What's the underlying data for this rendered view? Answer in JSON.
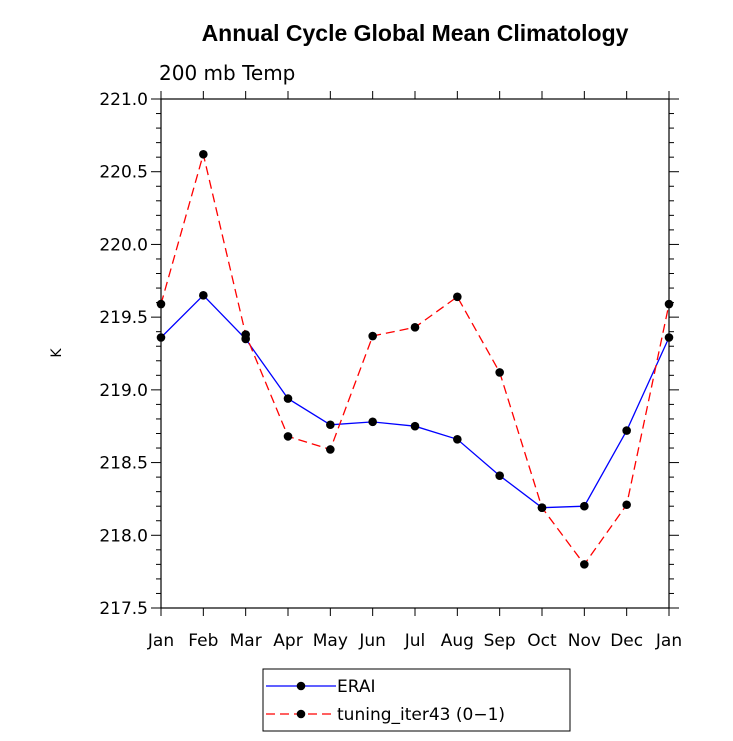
{
  "chart_data": {
    "type": "line",
    "title": "Annual Cycle Global Mean Climatology",
    "subtitle": "200 mb Temp",
    "xlabel": "",
    "ylabel": "K",
    "categories": [
      "Jan",
      "Feb",
      "Mar",
      "Apr",
      "May",
      "Jun",
      "Jul",
      "Aug",
      "Sep",
      "Oct",
      "Nov",
      "Dec",
      "Jan"
    ],
    "ylim": [
      217.5,
      221.0
    ],
    "yticks": [
      "217.5",
      "218.0",
      "218.5",
      "219.0",
      "219.5",
      "220.0",
      "220.5",
      "221.0"
    ],
    "series": [
      {
        "name": "ERAI",
        "color": "#0000ff",
        "dash": "solid",
        "values": [
          219.36,
          219.65,
          219.35,
          218.94,
          218.76,
          218.78,
          218.75,
          218.66,
          218.41,
          218.19,
          218.2,
          218.72,
          219.36
        ]
      },
      {
        "name": "tuning_iter43 (0−1)",
        "color": "#ff0000",
        "dash": "dashed",
        "values": [
          219.59,
          220.62,
          219.38,
          218.68,
          218.59,
          219.37,
          219.43,
          219.64,
          219.12,
          218.19,
          217.8,
          218.21,
          219.59
        ]
      }
    ],
    "grid": false,
    "legend": "bottom-center"
  }
}
